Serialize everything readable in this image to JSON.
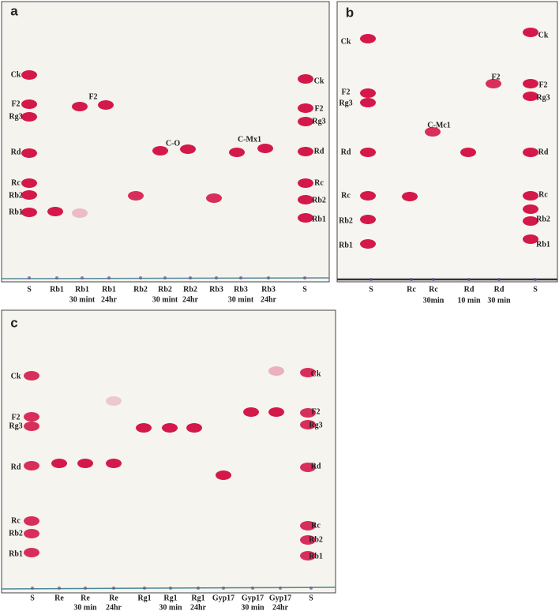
{
  "panels": [
    {
      "label": "a",
      "lanes": [
        [
          "S"
        ],
        [
          "Rb1"
        ],
        [
          "Rb1",
          "30 mint"
        ],
        [
          "Rb1",
          "24hr"
        ],
        [
          "Rb2"
        ],
        [
          "Rb2",
          "30 mint"
        ],
        [
          "Rb2",
          "24hr"
        ],
        [
          "Rb3"
        ],
        [
          "Rb3",
          "30 mint"
        ],
        [
          "Rb3",
          "24hr"
        ],
        [
          "S"
        ]
      ],
      "left_labels": [
        "Ck",
        "F2",
        "Rg3",
        "Rd",
        "Rc",
        "Rb2",
        "Rb1"
      ],
      "right_labels": [
        "Ck",
        "F2",
        "Rg3",
        "Rd",
        "Rc",
        "Rb2",
        "Rb1"
      ],
      "annotations": [
        "F2",
        "C-O",
        "C-Mx1"
      ]
    },
    {
      "label": "b",
      "lanes": [
        [
          "S"
        ],
        [
          "Rc"
        ],
        [
          "Rc",
          "30min"
        ],
        [
          "Rd",
          "10 min"
        ],
        [
          "Rd",
          "30 min"
        ],
        [
          "S"
        ]
      ],
      "left_labels": [
        "Ck",
        "F2",
        "Rg3",
        "Rd",
        "Rc",
        "Rb2",
        "Rb1"
      ],
      "right_labels": [
        "Ck",
        "F2",
        "Rg3",
        "Rd",
        "Rc",
        "Rb2",
        "Rb1"
      ],
      "annotations": [
        "C-Mc1",
        "F2"
      ]
    },
    {
      "label": "c",
      "lanes": [
        [
          "S"
        ],
        [
          "Re"
        ],
        [
          "Re",
          "30 min"
        ],
        [
          "Re",
          "24hr"
        ],
        [
          "Rg1"
        ],
        [
          "Rg1",
          "30 min"
        ],
        [
          "Rg1",
          "24hr"
        ],
        [
          "Gyp17"
        ],
        [
          "Gyp17",
          "30 min"
        ],
        [
          "Gyp17",
          "24hr"
        ],
        [
          "S"
        ]
      ],
      "left_labels": [
        "Ck",
        "F2",
        "Rg3",
        "Rd",
        "Rc",
        "Rb2",
        "Rb1"
      ],
      "right_labels": [
        "Ck",
        "F2",
        "Rg3",
        "Rd",
        "Rc",
        "Rb2",
        "Rb1"
      ],
      "annotations": []
    }
  ]
}
